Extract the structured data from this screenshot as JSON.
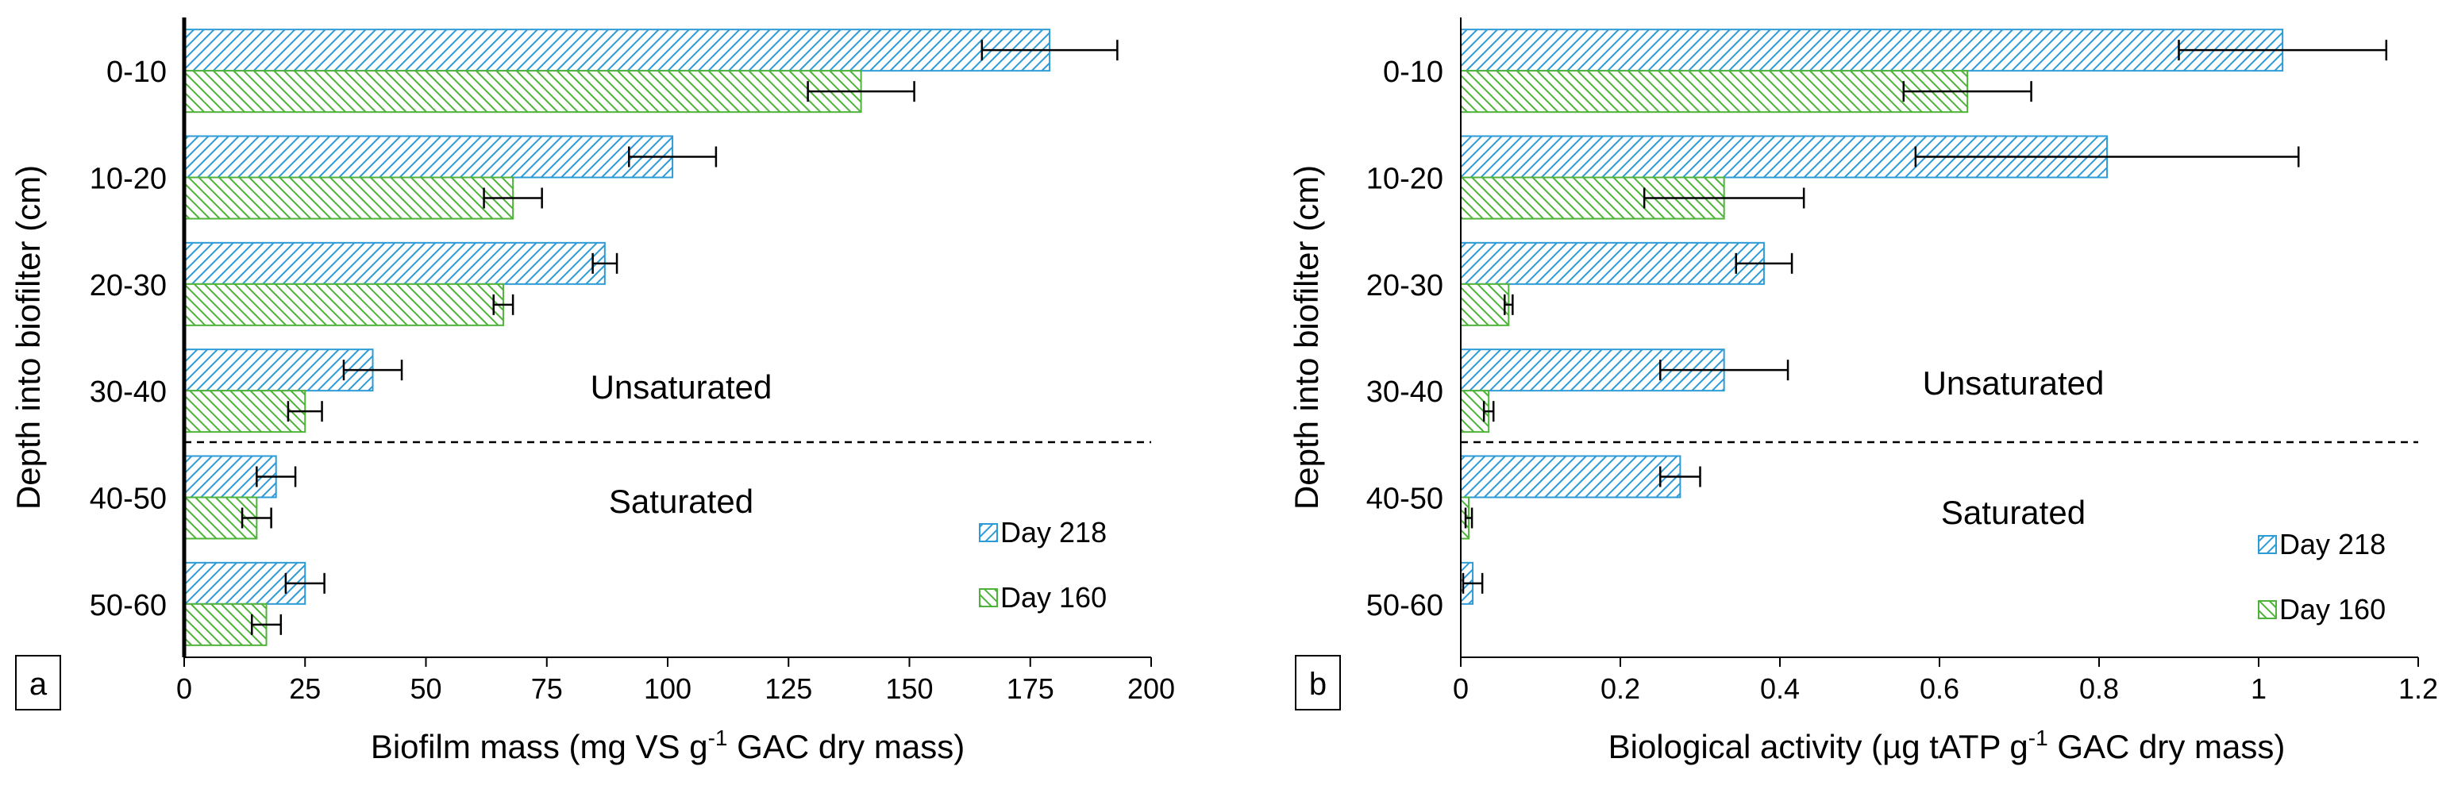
{
  "chart_data": [
    {
      "type": "bar",
      "orientation": "horizontal",
      "panel_label": "a",
      "categories": [
        "0-10",
        "10-20",
        "20-30",
        "30-40",
        "40-50",
        "50-60"
      ],
      "series": [
        {
          "name": "Day 218",
          "values": [
            179,
            101,
            87,
            39,
            19,
            25
          ],
          "errors": [
            14,
            9,
            2.5,
            6,
            4,
            4
          ],
          "color": "#2e9bd6"
        },
        {
          "name": "Day 160",
          "values": [
            140,
            68,
            66,
            25,
            15,
            17
          ],
          "errors": [
            11,
            6,
            2,
            3.5,
            3,
            3
          ],
          "color": "#4fb33a"
        }
      ],
      "xlim": [
        0,
        200
      ],
      "xticks": [
        "0",
        "25",
        "50",
        "75",
        "100",
        "125",
        "150",
        "175",
        "200"
      ],
      "xtick_values": [
        0,
        25,
        50,
        75,
        100,
        125,
        150,
        175,
        200
      ],
      "xlabel_main": "Biofilm mass (mg VS g",
      "xlabel_sup": "-1",
      "xlabel_tail": " GAC dry mass)",
      "ylabel": "Depth into biofilter (cm)",
      "zone_upper": "Unsaturated",
      "zone_lower": "Saturated",
      "divider_after_category": 4
    },
    {
      "type": "bar",
      "orientation": "horizontal",
      "panel_label": "b",
      "categories": [
        "0-10",
        "10-20",
        "20-30",
        "30-40",
        "40-50",
        "50-60"
      ],
      "series": [
        {
          "name": "Day 218",
          "values": [
            1.03,
            0.81,
            0.38,
            0.33,
            0.275,
            0.015
          ],
          "errors": [
            0.13,
            0.24,
            0.035,
            0.08,
            0.025,
            0.012
          ],
          "color": "#2e9bd6"
        },
        {
          "name": "Day 160",
          "values": [
            0.635,
            0.33,
            0.06,
            0.035,
            0.01,
            0
          ],
          "errors": [
            0.08,
            0.1,
            0.005,
            0.006,
            0.004,
            0
          ],
          "color": "#4fb33a"
        }
      ],
      "xlim": [
        0,
        1.2
      ],
      "xticks": [
        "0",
        "0.2",
        "0.4",
        "0.6",
        "0.8",
        "1",
        "1.2"
      ],
      "xtick_values": [
        0,
        0.2,
        0.4,
        0.6,
        0.8,
        1.0,
        1.2
      ],
      "xlabel_main": "Biological activity  (µg tATP g",
      "xlabel_sup": "-1",
      "xlabel_tail": " GAC dry mass)",
      "ylabel": "Depth into biofilter (cm)",
      "zone_upper": "Unsaturated",
      "zone_lower": "Saturated",
      "divider_after_category": 4
    }
  ]
}
